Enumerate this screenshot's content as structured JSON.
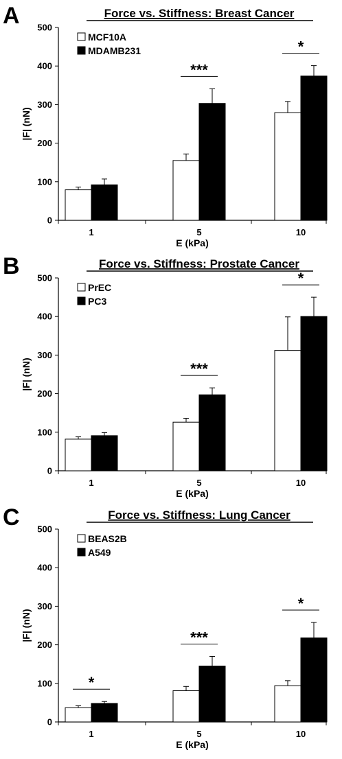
{
  "chart_data": [
    {
      "type": "bar",
      "panel": "A",
      "title": "Force vs. Stiffness: Breast Cancer",
      "xlabel": "E (kPa)",
      "ylabel": "|F| (nN)",
      "categories": [
        "1",
        "5",
        "10"
      ],
      "ylim": [
        0,
        500
      ],
      "yticks": [
        "0",
        "100",
        "200",
        "300",
        "400",
        "500"
      ],
      "legend_position": "top-left",
      "series": [
        {
          "name": "MCF10A",
          "fill": "#ffffff",
          "values": [
            79,
            155,
            279
          ],
          "errors": [
            7,
            17,
            29
          ]
        },
        {
          "name": "MDAMB231",
          "fill": "#000000",
          "values": [
            92,
            303,
            374
          ],
          "errors": [
            15,
            38,
            27
          ]
        }
      ],
      "significance": [
        "",
        "***",
        "*"
      ]
    },
    {
      "type": "bar",
      "panel": "B",
      "title": "Force vs. Stiffness: Prostate Cancer",
      "xlabel": "E (kPa)",
      "ylabel": "|F| (nN)",
      "categories": [
        "1",
        "5",
        "10"
      ],
      "ylim": [
        0,
        500
      ],
      "yticks": [
        "0",
        "100",
        "200",
        "300",
        "400",
        "500"
      ],
      "legend_position": "top-left",
      "series": [
        {
          "name": "PrEC",
          "fill": "#ffffff",
          "values": [
            82,
            126,
            312
          ],
          "errors": [
            6,
            10,
            87
          ]
        },
        {
          "name": "PC3",
          "fill": "#000000",
          "values": [
            91,
            197,
            400
          ],
          "errors": [
            8,
            18,
            50
          ]
        }
      ],
      "significance": [
        "",
        "***",
        "*"
      ]
    },
    {
      "type": "bar",
      "panel": "C",
      "title": "Force vs. Stiffness: Lung Cancer",
      "xlabel": "E (kPa)",
      "ylabel": "|F| (nN)",
      "categories": [
        "1",
        "5",
        "10"
      ],
      "ylim": [
        0,
        500
      ],
      "yticks": [
        "0",
        "100",
        "200",
        "300",
        "400",
        "500"
      ],
      "legend_position": "top-left",
      "series": [
        {
          "name": "BEAS2B",
          "fill": "#ffffff",
          "values": [
            37,
            81,
            94
          ],
          "errors": [
            5,
            11,
            13
          ]
        },
        {
          "name": "A549",
          "fill": "#000000",
          "values": [
            48,
            145,
            218
          ],
          "errors": [
            5,
            25,
            40
          ]
        }
      ],
      "significance": [
        "*",
        "***",
        "*"
      ]
    }
  ]
}
